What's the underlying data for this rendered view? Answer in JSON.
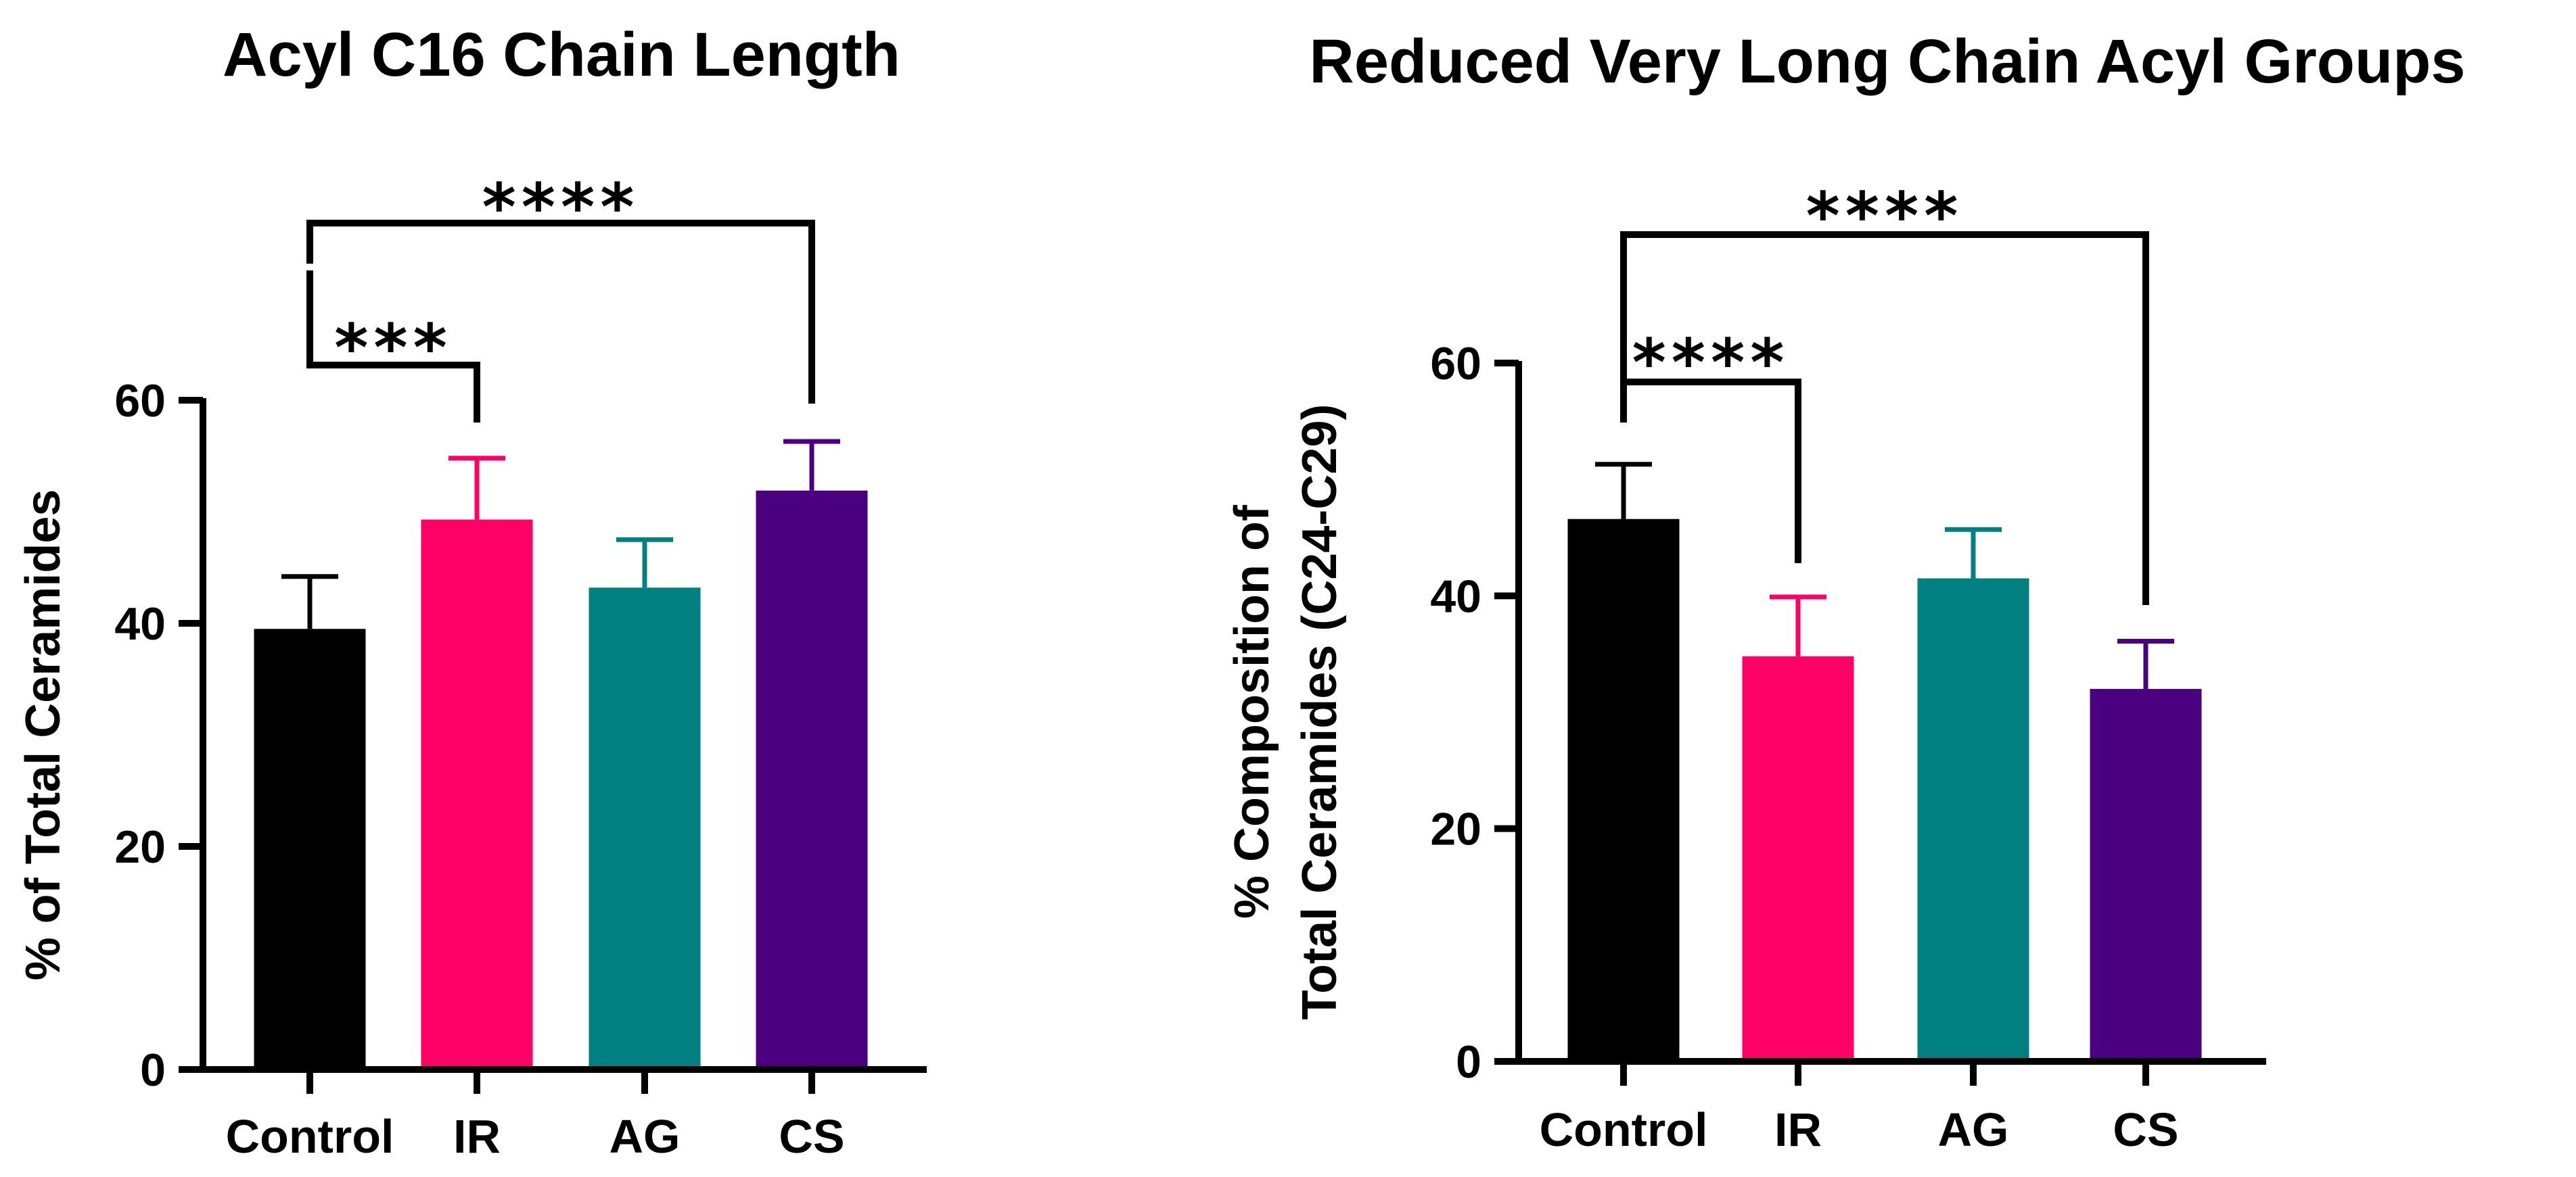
{
  "chart_data": [
    {
      "type": "bar",
      "title": "Acyl C16 Chain Length",
      "xlabel": "",
      "ylabel": "% of Total Ceramides",
      "ylabel_lines": [
        "% of Total Ceramides"
      ],
      "categories": [
        "Control",
        "IR",
        "AG",
        "CS"
      ],
      "values": [
        39.5,
        49.3,
        43.2,
        51.9
      ],
      "errors": [
        4.7,
        5.5,
        4.3,
        4.4
      ],
      "colors": [
        "#000000",
        "#ff0066",
        "#008080",
        "#4b0082"
      ],
      "ylim": [
        0,
        60
      ],
      "yticks": [
        0,
        20,
        40,
        60
      ],
      "yticks_labels": [
        "0",
        "20",
        "40",
        "60"
      ],
      "grid": false,
      "significance": [
        {
          "from": 0,
          "to": 1,
          "label": "***"
        },
        {
          "from": 0,
          "to": 3,
          "label": "****"
        }
      ]
    },
    {
      "type": "bar",
      "title": "Reduced Very Long Chain Acyl Groups",
      "xlabel": "",
      "ylabel": "% Composition of Total Ceramides (C24-C29)",
      "ylabel_lines": [
        "% Composition of",
        "Total Ceramides (C24-C29)"
      ],
      "categories": [
        "Control",
        "IR",
        "AG",
        "CS"
      ],
      "values": [
        46.6,
        34.8,
        41.5,
        32.0
      ],
      "errors": [
        4.7,
        5.1,
        4.2,
        4.1
      ],
      "colors": [
        "#000000",
        "#ff0066",
        "#008080",
        "#4b0082"
      ],
      "ylim": [
        0,
        60
      ],
      "yticks": [
        0,
        20,
        40,
        60
      ],
      "yticks_labels": [
        "0",
        "20",
        "40",
        "60"
      ],
      "grid": false,
      "significance": [
        {
          "from": 0,
          "to": 1,
          "label": "****"
        },
        {
          "from": 0,
          "to": 3,
          "label": "****"
        }
      ]
    }
  ]
}
